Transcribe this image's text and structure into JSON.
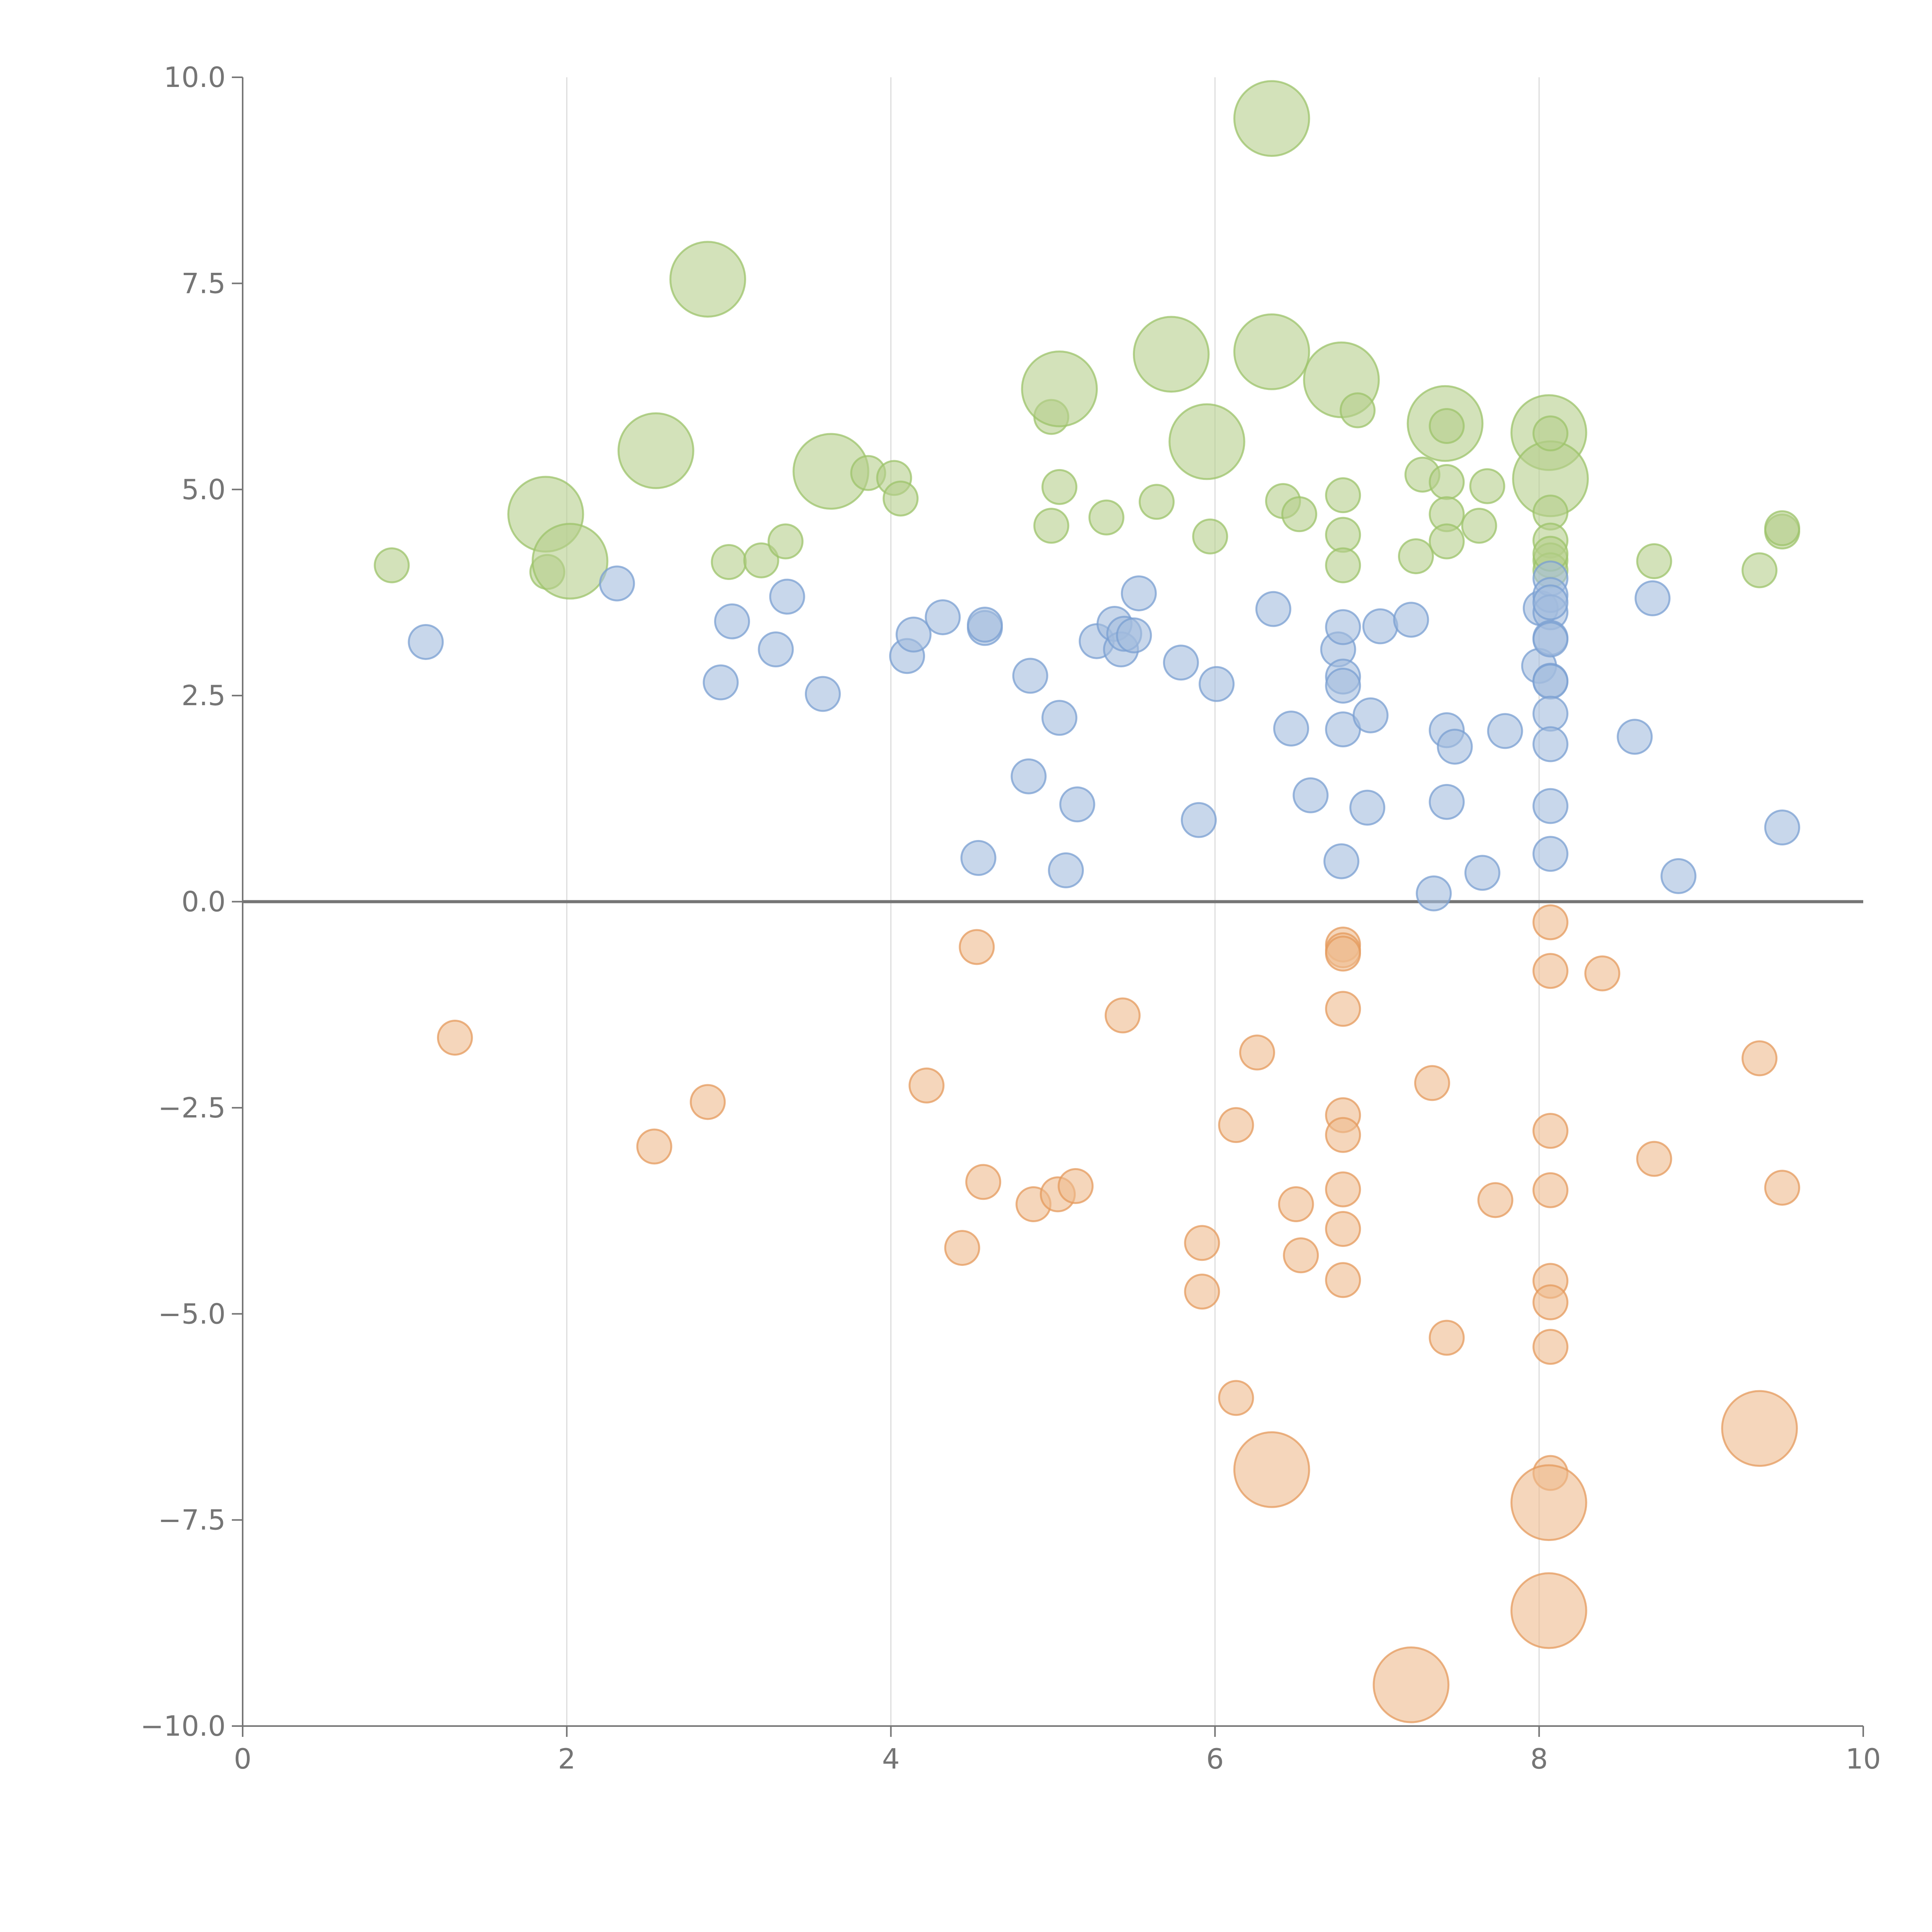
{
  "chart_data": {
    "type": "scatter",
    "title": "",
    "xlabel": "",
    "ylabel": "",
    "xlim": [
      0,
      10
    ],
    "ylim": [
      -10,
      10
    ],
    "x_ticks": [
      0,
      2,
      4,
      6,
      8,
      10
    ],
    "y_ticks": [
      10,
      7.5,
      5,
      2.5,
      0,
      -2.5,
      -5,
      -7.5,
      -10
    ],
    "x_tick_labels": [
      "0",
      "2",
      "4",
      "6",
      "8",
      "10"
    ],
    "y_tick_labels": [
      "10.0",
      "7.5",
      "5.0",
      "2.5",
      "0.0",
      "−2.5",
      "−5.0",
      "−7.5",
      "−10.0"
    ],
    "grid": "vertical",
    "reference_line_y": 0,
    "size_scale": [
      1,
      3
    ],
    "series": [
      {
        "name": "green",
        "color": "#b5cf8c",
        "stroke": "#9cc36a",
        "points": [
          [
            0.92,
            4.08,
            1
          ],
          [
            1.88,
            4.0,
            1
          ],
          [
            1.87,
            4.7,
            2
          ],
          [
            2.02,
            4.13,
            2
          ],
          [
            2.55,
            5.47,
            2
          ],
          [
            2.87,
            7.55,
            2
          ],
          [
            3.0,
            4.12,
            1
          ],
          [
            3.2,
            4.14,
            1
          ],
          [
            3.35,
            4.37,
            1
          ],
          [
            3.63,
            5.22,
            2
          ],
          [
            3.86,
            5.2,
            1
          ],
          [
            4.02,
            5.14,
            1
          ],
          [
            4.06,
            4.89,
            1
          ],
          [
            4.99,
            5.88,
            1
          ],
          [
            4.99,
            4.56,
            1
          ],
          [
            5.04,
            5.03,
            1
          ],
          [
            5.04,
            6.22,
            2
          ],
          [
            5.33,
            4.66,
            1
          ],
          [
            5.64,
            4.85,
            1
          ],
          [
            5.73,
            6.64,
            2
          ],
          [
            5.95,
            5.58,
            2
          ],
          [
            5.97,
            4.43,
            1
          ],
          [
            6.35,
            9.5,
            2
          ],
          [
            6.35,
            6.67,
            2
          ],
          [
            6.42,
            4.86,
            1
          ],
          [
            6.52,
            4.7,
            1
          ],
          [
            6.78,
            6.33,
            2
          ],
          [
            6.79,
            4.93,
            1
          ],
          [
            6.79,
            4.45,
            1
          ],
          [
            6.79,
            4.08,
            1
          ],
          [
            6.88,
            5.96,
            1
          ],
          [
            7.24,
            4.19,
            1
          ],
          [
            7.28,
            5.18,
            1
          ],
          [
            7.42,
            5.8,
            2
          ],
          [
            7.43,
            5.77,
            1
          ],
          [
            7.43,
            5.09,
            1
          ],
          [
            7.43,
            4.7,
            1
          ],
          [
            7.43,
            4.37,
            1
          ],
          [
            7.63,
            4.56,
            1
          ],
          [
            7.68,
            5.04,
            1
          ],
          [
            8.06,
            5.69,
            2
          ],
          [
            8.07,
            5.13,
            2
          ],
          [
            8.07,
            5.68,
            1
          ],
          [
            8.07,
            4.72,
            1
          ],
          [
            8.07,
            4.38,
            1
          ],
          [
            8.07,
            4.14,
            1
          ],
          [
            8.07,
            4.02,
            1
          ],
          [
            8.07,
            4.22,
            1
          ],
          [
            8.71,
            4.13,
            1
          ],
          [
            9.36,
            4.02,
            1
          ],
          [
            9.5,
            4.49,
            1
          ],
          [
            9.5,
            4.53,
            1
          ]
        ]
      },
      {
        "name": "blue",
        "color": "#a4bcdd",
        "stroke": "#7a9fd2",
        "points": [
          [
            1.13,
            3.15,
            1
          ],
          [
            2.31,
            3.86,
            1
          ],
          [
            2.95,
            2.66,
            1
          ],
          [
            3.02,
            3.4,
            1
          ],
          [
            3.29,
            3.06,
            1
          ],
          [
            3.36,
            3.7,
            1
          ],
          [
            3.58,
            2.52,
            1
          ],
          [
            4.1,
            2.98,
            1
          ],
          [
            4.14,
            3.24,
            1
          ],
          [
            4.32,
            3.45,
            1
          ],
          [
            4.54,
            0.53,
            1
          ],
          [
            4.58,
            3.32,
            1
          ],
          [
            4.58,
            3.36,
            1
          ],
          [
            4.85,
            1.52,
            1
          ],
          [
            4.86,
            2.74,
            1
          ],
          [
            5.04,
            2.23,
            1
          ],
          [
            5.08,
            0.38,
            1
          ],
          [
            5.15,
            1.18,
            1
          ],
          [
            5.27,
            3.16,
            1
          ],
          [
            5.38,
            3.37,
            1
          ],
          [
            5.42,
            3.06,
            1
          ],
          [
            5.44,
            3.25,
            1
          ],
          [
            5.5,
            3.23,
            1
          ],
          [
            5.53,
            3.74,
            1
          ],
          [
            5.79,
            2.9,
            1
          ],
          [
            5.9,
            0.99,
            1
          ],
          [
            6.01,
            2.64,
            1
          ],
          [
            6.36,
            3.55,
            1
          ],
          [
            6.47,
            2.1,
            1
          ],
          [
            6.59,
            1.29,
            1
          ],
          [
            6.76,
            3.06,
            1
          ],
          [
            6.78,
            0.49,
            1
          ],
          [
            6.79,
            3.33,
            1
          ],
          [
            6.79,
            2.73,
            1
          ],
          [
            6.79,
            2.62,
            1
          ],
          [
            6.79,
            2.09,
            1
          ],
          [
            6.94,
            1.14,
            1
          ],
          [
            6.96,
            2.26,
            1
          ],
          [
            7.02,
            3.34,
            1
          ],
          [
            7.21,
            3.42,
            1
          ],
          [
            7.35,
            0.1,
            1
          ],
          [
            7.43,
            2.08,
            1
          ],
          [
            7.43,
            1.21,
            1
          ],
          [
            7.48,
            1.88,
            1
          ],
          [
            7.65,
            0.35,
            1
          ],
          [
            7.79,
            2.07,
            1
          ],
          [
            8.0,
            2.86,
            1
          ],
          [
            8.01,
            3.56,
            1
          ],
          [
            8.07,
            3.92,
            1
          ],
          [
            8.07,
            3.72,
            1
          ],
          [
            8.07,
            3.51,
            1
          ],
          [
            8.07,
            3.2,
            1
          ],
          [
            8.07,
            3.18,
            1
          ],
          [
            8.07,
            2.68,
            1
          ],
          [
            8.07,
            2.67,
            1
          ],
          [
            8.07,
            2.28,
            1
          ],
          [
            8.07,
            1.91,
            1
          ],
          [
            8.07,
            1.16,
            1
          ],
          [
            8.07,
            0.58,
            1
          ],
          [
            8.07,
            3.63,
            1
          ],
          [
            8.59,
            2.0,
            1
          ],
          [
            8.7,
            3.68,
            1
          ],
          [
            8.86,
            0.31,
            1
          ],
          [
            9.5,
            0.9,
            1
          ]
        ]
      },
      {
        "name": "orange",
        "color": "#efba8e",
        "stroke": "#e49a5c",
        "points": [
          [
            1.31,
            -1.65,
            1
          ],
          [
            2.54,
            -2.97,
            1
          ],
          [
            2.87,
            -2.43,
            1
          ],
          [
            4.22,
            -2.23,
            1
          ],
          [
            4.44,
            -4.2,
            1
          ],
          [
            4.53,
            -0.55,
            1
          ],
          [
            4.57,
            -3.4,
            1
          ],
          [
            4.88,
            -3.67,
            1
          ],
          [
            5.03,
            -3.55,
            1
          ],
          [
            5.14,
            -3.45,
            1
          ],
          [
            5.43,
            -1.38,
            1
          ],
          [
            5.92,
            -4.14,
            1
          ],
          [
            5.92,
            -4.73,
            1
          ],
          [
            6.13,
            -6.02,
            1
          ],
          [
            6.13,
            -2.71,
            1
          ],
          [
            6.26,
            -1.83,
            1
          ],
          [
            6.35,
            -6.89,
            2
          ],
          [
            6.5,
            -3.67,
            1
          ],
          [
            6.53,
            -4.29,
            1
          ],
          [
            6.79,
            -0.52,
            1
          ],
          [
            6.79,
            -0.59,
            1
          ],
          [
            6.79,
            -0.63,
            1
          ],
          [
            6.79,
            -1.3,
            1
          ],
          [
            6.79,
            -2.59,
            1
          ],
          [
            6.79,
            -2.83,
            1
          ],
          [
            6.79,
            -3.49,
            1
          ],
          [
            6.79,
            -3.97,
            1
          ],
          [
            6.79,
            -4.59,
            1
          ],
          [
            7.21,
            -9.5,
            2
          ],
          [
            7.34,
            -2.2,
            1
          ],
          [
            7.43,
            -5.29,
            1
          ],
          [
            7.73,
            -3.62,
            1
          ],
          [
            8.07,
            -0.25,
            1
          ],
          [
            8.07,
            -0.84,
            1
          ],
          [
            8.07,
            -2.78,
            1
          ],
          [
            8.07,
            -3.5,
            1
          ],
          [
            8.07,
            -4.6,
            1
          ],
          [
            8.07,
            -4.86,
            1
          ],
          [
            8.07,
            -5.4,
            1
          ],
          [
            8.07,
            -6.93,
            1
          ],
          [
            8.06,
            -7.29,
            2
          ],
          [
            8.06,
            -8.6,
            2
          ],
          [
            8.39,
            -0.87,
            1
          ],
          [
            8.71,
            -3.12,
            1
          ],
          [
            9.36,
            -1.9,
            1
          ],
          [
            9.36,
            -6.39,
            2
          ],
          [
            9.5,
            -3.47,
            1
          ]
        ]
      }
    ]
  }
}
